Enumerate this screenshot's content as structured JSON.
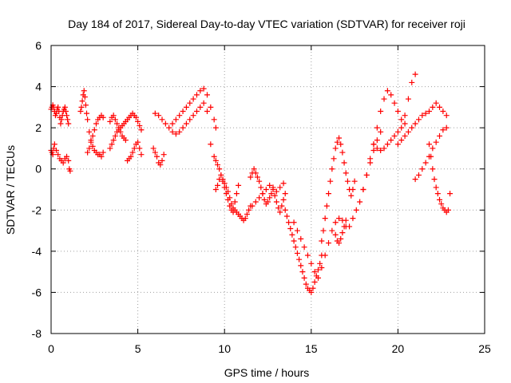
{
  "chart_data": {
    "type": "scatter",
    "title": "Day 184 of 2017, Sidereal Day-to-day VTEC variation (SDTVAR) for receiver roji",
    "xlabel": "GPS time / hours",
    "ylabel": "SDTVAR / TECUs",
    "xlim": [
      0,
      25
    ],
    "ylim": [
      -8,
      6
    ],
    "xticks": [
      0,
      5,
      10,
      15,
      20,
      25
    ],
    "yticks": [
      -8,
      -6,
      -4,
      -2,
      0,
      2,
      4,
      6
    ],
    "grid": true,
    "marker": "+",
    "marker_color": "#ff0000",
    "series": [
      {
        "name": "SDTVAR",
        "x": [
          0.0,
          0.05,
          0.1,
          0.15,
          0.2,
          0.25,
          0.3,
          0.35,
          0.4,
          0.45,
          0.5,
          0.55,
          0.6,
          0.65,
          0.7,
          0.75,
          0.8,
          0.85,
          0.9,
          0.95,
          1.0,
          0.0,
          0.05,
          0.1,
          0.15,
          0.2,
          0.3,
          0.4,
          0.5,
          0.6,
          0.7,
          0.8,
          0.9,
          1.0,
          1.05,
          1.1,
          1.7,
          1.75,
          1.8,
          1.85,
          1.9,
          1.95,
          2.0,
          2.05,
          2.1,
          2.1,
          2.2,
          2.3,
          2.4,
          2.5,
          2.6,
          2.7,
          2.8,
          2.9,
          3.0,
          2.2,
          2.3,
          2.4,
          2.5,
          2.6,
          2.7,
          2.8,
          2.9,
          3.0,
          3.4,
          3.5,
          3.6,
          3.7,
          3.8,
          3.9,
          4.0,
          4.1,
          4.2,
          4.3,
          3.4,
          3.5,
          3.6,
          3.7,
          3.8,
          3.9,
          4.0,
          4.1,
          4.2,
          4.3,
          4.4,
          4.5,
          4.6,
          4.7,
          4.8,
          4.9,
          5.0,
          5.1,
          5.2,
          4.4,
          4.5,
          4.6,
          4.7,
          4.8,
          4.9,
          5.0,
          5.1,
          5.2,
          5.9,
          6.0,
          6.1,
          6.2,
          6.3,
          6.4,
          6.5,
          6.0,
          6.2,
          6.4,
          6.6,
          6.8,
          7.0,
          7.2,
          7.4,
          7.6,
          7.8,
          8.0,
          8.2,
          8.4,
          8.6,
          8.8,
          9.0,
          9.2,
          9.4,
          9.5,
          7.0,
          7.2,
          7.4,
          7.6,
          7.8,
          8.0,
          8.2,
          8.4,
          8.6,
          8.8,
          9.0,
          9.2,
          9.4,
          9.5,
          9.6,
          9.7,
          9.8,
          9.9,
          10.0,
          10.1,
          10.2,
          10.3,
          10.4,
          10.5,
          10.6,
          10.7,
          10.8,
          10.9,
          11.0,
          11.1,
          11.2,
          11.3,
          11.4,
          11.5,
          9.5,
          9.6,
          9.7,
          9.8,
          9.9,
          10.0,
          10.1,
          10.2,
          10.3,
          10.4,
          10.5,
          10.6,
          10.7,
          10.8,
          11.5,
          11.6,
          11.7,
          11.8,
          11.9,
          12.0,
          12.1,
          12.2,
          12.3,
          12.4,
          12.5,
          12.6,
          12.7,
          12.8,
          12.9,
          13.0,
          13.1,
          13.2,
          13.3,
          13.4,
          13.5,
          11.6,
          11.8,
          12.0,
          12.2,
          12.4,
          12.6,
          12.8,
          13.0,
          13.2,
          13.4,
          13.5,
          13.6,
          13.7,
          13.8,
          13.9,
          14.0,
          14.1,
          14.2,
          14.3,
          14.4,
          14.5,
          14.6,
          14.7,
          14.8,
          14.9,
          15.0,
          15.1,
          15.2,
          15.3,
          15.4,
          15.5,
          15.6,
          14.0,
          14.2,
          14.4,
          14.6,
          14.8,
          15.0,
          15.2,
          15.4,
          15.6,
          15.8,
          16.0,
          16.2,
          16.4,
          16.6,
          16.8,
          17.0,
          15.6,
          15.7,
          15.8,
          15.9,
          16.0,
          16.1,
          16.2,
          16.3,
          16.4,
          16.5,
          16.6,
          16.7,
          16.8,
          16.9,
          17.0,
          17.1,
          17.2,
          17.3,
          17.4,
          17.5,
          16.4,
          16.5,
          16.6,
          16.7,
          16.8,
          16.9,
          17.0,
          17.2,
          17.4,
          17.6,
          17.8,
          18.0,
          18.2,
          18.4,
          18.6,
          18.8,
          19.0,
          18.0,
          18.2,
          18.4,
          18.6,
          18.8,
          19.0,
          19.2,
          19.4,
          19.6,
          19.8,
          20.0,
          20.2,
          20.4,
          20.6,
          20.8,
          21.0,
          18.6,
          18.8,
          19.0,
          19.2,
          19.4,
          19.6,
          19.8,
          20.0,
          20.2,
          20.4,
          20.0,
          20.2,
          20.4,
          20.6,
          20.8,
          21.0,
          21.2,
          21.4,
          21.6,
          21.8,
          22.0,
          22.2,
          22.4,
          22.6,
          22.8,
          21.0,
          21.2,
          21.4,
          21.6,
          21.8,
          22.0,
          22.2,
          22.4,
          22.6,
          22.8,
          21.8,
          21.9,
          22.0,
          22.1,
          22.2,
          22.3,
          22.4,
          22.5,
          22.6,
          22.7,
          22.8,
          22.9,
          23.0
        ],
        "y": [
          2.9,
          3.0,
          3.1,
          3.0,
          2.8,
          2.6,
          2.7,
          2.9,
          3.0,
          2.8,
          2.5,
          2.2,
          2.4,
          2.6,
          2.8,
          2.9,
          3.0,
          2.8,
          2.6,
          2.4,
          2.2,
          0.9,
          0.8,
          0.7,
          1.0,
          1.2,
          0.9,
          0.7,
          0.5,
          0.4,
          0.3,
          0.5,
          0.6,
          0.4,
          0.0,
          -0.1,
          2.8,
          3.0,
          3.3,
          3.6,
          3.8,
          3.5,
          3.1,
          2.7,
          2.4,
          0.8,
          1.0,
          1.3,
          1.6,
          1.9,
          2.2,
          2.4,
          2.5,
          2.6,
          2.5,
          1.8,
          1.4,
          1.1,
          0.9,
          0.8,
          0.7,
          0.7,
          0.6,
          0.8,
          2.3,
          2.5,
          2.6,
          2.4,
          2.2,
          2.0,
          1.8,
          1.6,
          1.5,
          1.4,
          1.0,
          1.2,
          1.4,
          1.6,
          1.8,
          1.9,
          2.0,
          2.1,
          2.2,
          2.3,
          2.4,
          2.5,
          2.6,
          2.7,
          2.6,
          2.5,
          2.3,
          2.1,
          1.9,
          0.4,
          0.5,
          0.6,
          0.8,
          1.0,
          1.2,
          1.3,
          1.0,
          0.7,
          1.0,
          0.8,
          0.6,
          0.3,
          0.2,
          0.4,
          0.7,
          2.7,
          2.6,
          2.4,
          2.2,
          2.0,
          2.2,
          2.4,
          2.6,
          2.8,
          3.0,
          3.2,
          3.4,
          3.6,
          3.8,
          3.9,
          3.6,
          3.0,
          2.4,
          2.0,
          1.8,
          1.7,
          1.8,
          2.0,
          2.2,
          2.4,
          2.6,
          2.8,
          3.0,
          3.2,
          2.8,
          1.2,
          0.6,
          0.4,
          0.2,
          0.0,
          -0.3,
          -0.5,
          -0.7,
          -0.9,
          -1.1,
          -1.4,
          -1.7,
          -1.9,
          -2.0,
          -2.1,
          -2.2,
          -2.3,
          -2.4,
          -2.5,
          -2.4,
          -2.2,
          -2.0,
          -1.8,
          -1.0,
          -0.8,
          -0.5,
          -0.3,
          -0.6,
          -0.9,
          -1.2,
          -1.5,
          -1.8,
          -2.0,
          -2.1,
          -1.6,
          -1.2,
          -0.8,
          -0.4,
          -0.2,
          0.0,
          -0.2,
          -0.4,
          -0.6,
          -0.9,
          -1.2,
          -1.5,
          -1.7,
          -1.6,
          -1.4,
          -1.2,
          -1.0,
          -1.3,
          -1.6,
          -1.9,
          -2.1,
          -1.8,
          -1.5,
          -1.2,
          -1.8,
          -1.6,
          -1.4,
          -1.2,
          -1.0,
          -0.8,
          -0.9,
          -1.1,
          -0.9,
          -0.7,
          -2.0,
          -2.3,
          -2.6,
          -2.9,
          -3.2,
          -3.5,
          -3.8,
          -4.1,
          -4.4,
          -4.7,
          -5.0,
          -5.3,
          -5.6,
          -5.8,
          -5.9,
          -6.0,
          -5.8,
          -5.5,
          -5.2,
          -4.9,
          -4.6,
          -4.2,
          -2.6,
          -3.0,
          -3.4,
          -3.8,
          -4.2,
          -4.6,
          -5.0,
          -5.3,
          -4.8,
          -4.2,
          -3.6,
          -3.0,
          -2.6,
          -2.4,
          -2.5,
          -2.8,
          -3.5,
          -3.0,
          -2.4,
          -1.8,
          -1.2,
          -0.6,
          0.0,
          0.5,
          1.0,
          1.3,
          1.5,
          1.2,
          0.8,
          0.3,
          -0.2,
          -0.6,
          -1.0,
          -1.3,
          -1.0,
          -0.6,
          -3.2,
          -3.5,
          -3.6,
          -3.4,
          -3.1,
          -2.8,
          -2.5,
          -2.8,
          -2.4,
          -2.0,
          -1.6,
          -1.0,
          -0.3,
          0.3,
          0.9,
          1.4,
          1.8,
          -1.0,
          -0.3,
          0.5,
          1.2,
          2.0,
          2.8,
          3.4,
          3.8,
          3.6,
          3.2,
          2.8,
          2.4,
          2.6,
          3.4,
          4.2,
          4.6,
          1.2,
          1.0,
          0.9,
          1.0,
          1.2,
          1.4,
          1.6,
          1.8,
          2.0,
          2.2,
          1.2,
          1.4,
          1.6,
          1.8,
          2.0,
          2.2,
          2.4,
          2.6,
          2.7,
          2.8,
          3.0,
          3.2,
          3.0,
          2.8,
          2.6,
          -0.5,
          -0.3,
          0.0,
          0.3,
          0.6,
          1.0,
          1.3,
          1.6,
          1.9,
          2.0,
          1.2,
          0.6,
          0.0,
          -0.5,
          -0.9,
          -1.2,
          -1.5,
          -1.7,
          -1.9,
          -2.0,
          -2.1,
          -2.0,
          -1.2
        ]
      }
    ]
  }
}
